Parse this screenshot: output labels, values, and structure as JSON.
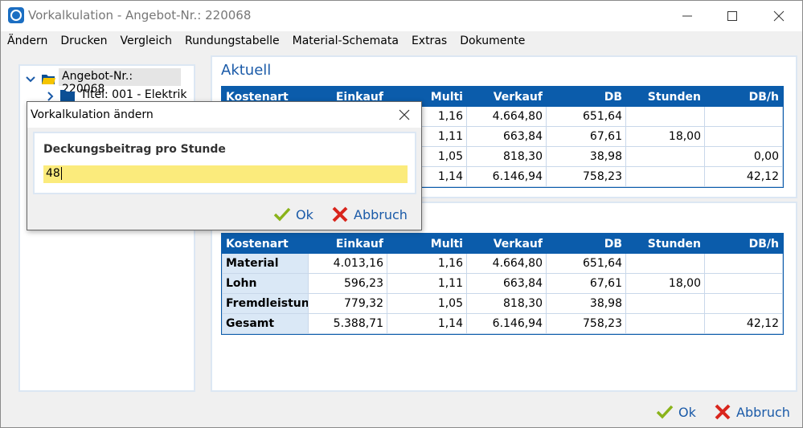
{
  "window": {
    "title": "Vorkalkulation - Angebot-Nr.: 220068"
  },
  "menu": [
    "Ändern",
    "Drucken",
    "Vergleich",
    "Rundungstabelle",
    "Material-Schemata",
    "Extras",
    "Dokumente"
  ],
  "tree": [
    {
      "label": "Angebot-Nr.: 220068"
    },
    {
      "label": "Titel: 001 - Elektrik"
    }
  ],
  "section_title": "Aktuell",
  "table_current": {
    "header": [
      "Kostenart",
      "Einkauf",
      "Multi",
      "Verkauf",
      "DB",
      "Stunden",
      "DB/h"
    ],
    "rows": [
      [
        null,
        null,
        "1,16",
        "4.664,80",
        "651,64",
        null,
        null
      ],
      [
        null,
        null,
        "1,11",
        "663,84",
        "67,61",
        "18,00",
        null
      ],
      [
        null,
        null,
        "1,05",
        "818,30",
        "38,98",
        null,
        "0,00"
      ],
      [
        null,
        null,
        "1,14",
        "6.146,94",
        "758,23",
        null,
        "42,12"
      ]
    ]
  },
  "table_second": {
    "header": [
      "Kostenart",
      "Einkauf",
      "Multi",
      "Verkauf",
      "DB",
      "Stunden",
      "DB/h"
    ],
    "rows": [
      [
        "Material",
        "4.013,16",
        "1,16",
        "4.664,80",
        "651,64",
        null,
        null
      ],
      [
        "Lohn",
        "596,23",
        "1,11",
        "663,84",
        "67,61",
        "18,00",
        null
      ],
      [
        "Fremdleistung",
        "779,32",
        "1,05",
        "818,30",
        "38,98",
        null,
        null
      ],
      [
        "Gesamt",
        "5.388,71",
        "1,14",
        "6.146,94",
        "758,23",
        null,
        "42,12"
      ]
    ]
  },
  "dialog": {
    "title": "Vorkalkulation ändern",
    "label": "Deckungsbeitrag pro Stunde",
    "input": "48",
    "ok": "Ok",
    "cancel": "Abbruch"
  },
  "footer": {
    "ok": "Ok",
    "cancel": "Abbruch"
  }
}
